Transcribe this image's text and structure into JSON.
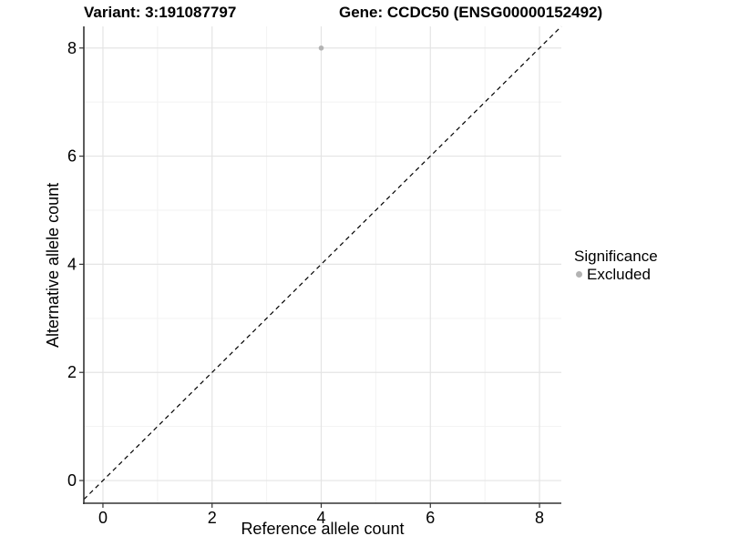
{
  "chart_data": {
    "type": "scatter",
    "title_left": "Variant: 3:191087797",
    "title_right": "Gene: CCDC50 (ENSG00000152492)",
    "xlabel": "Reference allele count",
    "ylabel": "Alternative allele count",
    "x_ticks": [
      0,
      2,
      4,
      6,
      8
    ],
    "y_ticks": [
      0,
      2,
      4,
      6,
      8
    ],
    "xlim": [
      -0.35,
      8.4
    ],
    "ylim": [
      -0.42,
      8.4
    ],
    "grid": {
      "major_color": "#e4e4e4",
      "minor_color": "#f2f2f2",
      "on": true
    },
    "axis_color": "#333333",
    "tick_label_color": "#000000",
    "reference_line": {
      "kind": "identity",
      "equation": "y = x",
      "style": "dashed",
      "color": "#000000"
    },
    "series": [
      {
        "name": "Excluded",
        "color": "#b3b3b3",
        "points": [
          {
            "x": 4,
            "y": 8
          }
        ]
      }
    ],
    "legend": {
      "title": "Significance",
      "position": "right",
      "entries": [
        {
          "label": "Excluded",
          "color": "#b3b3b3",
          "marker": "circle"
        }
      ]
    }
  }
}
